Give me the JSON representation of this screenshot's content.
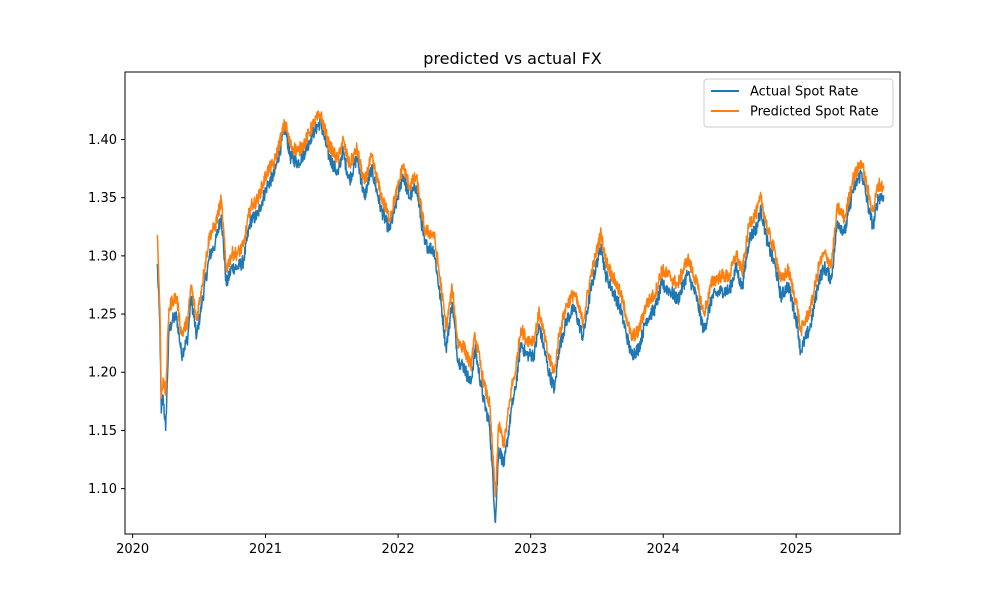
{
  "chart_data": {
    "type": "line",
    "title": "predicted vs actual FX",
    "xlabel": "",
    "ylabel": "",
    "x_ticks": [
      "2020",
      "2021",
      "2022",
      "2023",
      "2024",
      "2025"
    ],
    "y_ticks": [
      "1.10",
      "1.15",
      "1.20",
      "1.25",
      "1.30",
      "1.35",
      "1.40"
    ],
    "xlim": [
      "2019-12-11",
      "2025-10-14"
    ],
    "ylim": [
      1.061,
      1.458
    ],
    "grid": false,
    "legend_position": "top-right",
    "series": [
      {
        "name": "Actual Spot Rate",
        "color": "#1f77b4",
        "points": [
          [
            "2020-03-09",
            1.293
          ],
          [
            "2020-03-16",
            1.24
          ],
          [
            "2020-03-20",
            1.165
          ],
          [
            "2020-03-25",
            1.18
          ],
          [
            "2020-04-01",
            1.15
          ],
          [
            "2020-04-10",
            1.235
          ],
          [
            "2020-04-20",
            1.245
          ],
          [
            "2020-05-01",
            1.248
          ],
          [
            "2020-05-15",
            1.215
          ],
          [
            "2020-06-01",
            1.23
          ],
          [
            "2020-06-10",
            1.265
          ],
          [
            "2020-06-25",
            1.23
          ],
          [
            "2020-07-10",
            1.26
          ],
          [
            "2020-07-31",
            1.3
          ],
          [
            "2020-08-15",
            1.31
          ],
          [
            "2020-09-01",
            1.335
          ],
          [
            "2020-09-15",
            1.275
          ],
          [
            "2020-09-30",
            1.29
          ],
          [
            "2020-10-15",
            1.29
          ],
          [
            "2020-11-01",
            1.295
          ],
          [
            "2020-11-20",
            1.33
          ],
          [
            "2020-12-10",
            1.335
          ],
          [
            "2021-01-05",
            1.36
          ],
          [
            "2021-01-25",
            1.37
          ],
          [
            "2021-02-24",
            1.41
          ],
          [
            "2021-03-10",
            1.385
          ],
          [
            "2021-04-01",
            1.38
          ],
          [
            "2021-04-20",
            1.39
          ],
          [
            "2021-05-10",
            1.405
          ],
          [
            "2021-06-01",
            1.415
          ],
          [
            "2021-06-25",
            1.385
          ],
          [
            "2021-07-20",
            1.37
          ],
          [
            "2021-08-01",
            1.39
          ],
          [
            "2021-08-20",
            1.365
          ],
          [
            "2021-09-10",
            1.385
          ],
          [
            "2021-09-30",
            1.35
          ],
          [
            "2021-10-20",
            1.375
          ],
          [
            "2021-11-15",
            1.34
          ],
          [
            "2021-12-08",
            1.322
          ],
          [
            "2021-12-31",
            1.35
          ],
          [
            "2022-01-14",
            1.37
          ],
          [
            "2022-02-01",
            1.35
          ],
          [
            "2022-02-20",
            1.36
          ],
          [
            "2022-03-15",
            1.31
          ],
          [
            "2022-04-10",
            1.305
          ],
          [
            "2022-05-01",
            1.255
          ],
          [
            "2022-05-13",
            1.22
          ],
          [
            "2022-05-30",
            1.26
          ],
          [
            "2022-06-15",
            1.21
          ],
          [
            "2022-07-01",
            1.205
          ],
          [
            "2022-07-20",
            1.19
          ],
          [
            "2022-08-01",
            1.22
          ],
          [
            "2022-08-25",
            1.175
          ],
          [
            "2022-09-10",
            1.155
          ],
          [
            "2022-09-26",
            1.071
          ],
          [
            "2022-10-05",
            1.135
          ],
          [
            "2022-10-20",
            1.12
          ],
          [
            "2022-11-10",
            1.17
          ],
          [
            "2022-11-20",
            1.185
          ],
          [
            "2022-12-05",
            1.225
          ],
          [
            "2022-12-20",
            1.215
          ],
          [
            "2023-01-10",
            1.215
          ],
          [
            "2023-01-25",
            1.24
          ],
          [
            "2023-02-20",
            1.2
          ],
          [
            "2023-03-08",
            1.185
          ],
          [
            "2023-03-20",
            1.22
          ],
          [
            "2023-04-10",
            1.245
          ],
          [
            "2023-05-01",
            1.255
          ],
          [
            "2023-05-25",
            1.23
          ],
          [
            "2023-06-15",
            1.27
          ],
          [
            "2023-07-14",
            1.31
          ],
          [
            "2023-07-25",
            1.285
          ],
          [
            "2023-08-15",
            1.27
          ],
          [
            "2023-09-05",
            1.255
          ],
          [
            "2023-09-20",
            1.235
          ],
          [
            "2023-10-05",
            1.215
          ],
          [
            "2023-10-25",
            1.22
          ],
          [
            "2023-11-15",
            1.245
          ],
          [
            "2023-12-10",
            1.255
          ],
          [
            "2023-12-28",
            1.275
          ],
          [
            "2024-01-20",
            1.27
          ],
          [
            "2024-02-10",
            1.262
          ],
          [
            "2024-03-08",
            1.285
          ],
          [
            "2024-04-01",
            1.265
          ],
          [
            "2024-04-22",
            1.235
          ],
          [
            "2024-05-15",
            1.265
          ],
          [
            "2024-06-10",
            1.27
          ],
          [
            "2024-07-01",
            1.27
          ],
          [
            "2024-07-20",
            1.29
          ],
          [
            "2024-08-05",
            1.272
          ],
          [
            "2024-08-25",
            1.315
          ],
          [
            "2024-09-15",
            1.325
          ],
          [
            "2024-09-26",
            1.34
          ],
          [
            "2024-10-15",
            1.31
          ],
          [
            "2024-11-05",
            1.29
          ],
          [
            "2024-11-20",
            1.265
          ],
          [
            "2024-12-10",
            1.275
          ],
          [
            "2025-01-05",
            1.24
          ],
          [
            "2025-01-13",
            1.218
          ],
          [
            "2025-02-10",
            1.24
          ],
          [
            "2025-03-05",
            1.28
          ],
          [
            "2025-03-20",
            1.29
          ],
          [
            "2025-04-08",
            1.28
          ],
          [
            "2025-04-25",
            1.33
          ],
          [
            "2025-05-15",
            1.32
          ],
          [
            "2025-06-05",
            1.355
          ],
          [
            "2025-06-30",
            1.372
          ],
          [
            "2025-07-20",
            1.34
          ],
          [
            "2025-08-01",
            1.325
          ],
          [
            "2025-08-15",
            1.35
          ],
          [
            "2025-08-30",
            1.352
          ]
        ]
      },
      {
        "name": "Predicted Spot Rate",
        "color": "#ff7f0e",
        "points": [
          [
            "2020-03-09",
            1.318
          ],
          [
            "2020-03-16",
            1.255
          ],
          [
            "2020-03-20",
            1.178
          ],
          [
            "2020-03-25",
            1.195
          ],
          [
            "2020-04-01",
            1.18
          ],
          [
            "2020-04-10",
            1.255
          ],
          [
            "2020-04-20",
            1.262
          ],
          [
            "2020-05-01",
            1.265
          ],
          [
            "2020-05-15",
            1.232
          ],
          [
            "2020-06-01",
            1.245
          ],
          [
            "2020-06-10",
            1.275
          ],
          [
            "2020-06-25",
            1.245
          ],
          [
            "2020-07-10",
            1.275
          ],
          [
            "2020-07-31",
            1.318
          ],
          [
            "2020-08-15",
            1.325
          ],
          [
            "2020-09-01",
            1.348
          ],
          [
            "2020-09-15",
            1.288
          ],
          [
            "2020-09-30",
            1.302
          ],
          [
            "2020-10-15",
            1.302
          ],
          [
            "2020-11-01",
            1.308
          ],
          [
            "2020-11-20",
            1.342
          ],
          [
            "2020-12-10",
            1.348
          ],
          [
            "2021-01-05",
            1.372
          ],
          [
            "2021-01-25",
            1.38
          ],
          [
            "2021-02-24",
            1.415
          ],
          [
            "2021-03-10",
            1.395
          ],
          [
            "2021-04-01",
            1.39
          ],
          [
            "2021-04-20",
            1.398
          ],
          [
            "2021-05-10",
            1.412
          ],
          [
            "2021-06-01",
            1.422
          ],
          [
            "2021-06-25",
            1.395
          ],
          [
            "2021-07-20",
            1.382
          ],
          [
            "2021-08-01",
            1.4
          ],
          [
            "2021-08-20",
            1.378
          ],
          [
            "2021-09-10",
            1.392
          ],
          [
            "2021-09-30",
            1.362
          ],
          [
            "2021-10-20",
            1.385
          ],
          [
            "2021-11-15",
            1.352
          ],
          [
            "2021-12-08",
            1.332
          ],
          [
            "2021-12-31",
            1.358
          ],
          [
            "2022-01-14",
            1.378
          ],
          [
            "2022-02-01",
            1.36
          ],
          [
            "2022-02-20",
            1.368
          ],
          [
            "2022-03-15",
            1.322
          ],
          [
            "2022-04-10",
            1.318
          ],
          [
            "2022-05-01",
            1.27
          ],
          [
            "2022-05-13",
            1.238
          ],
          [
            "2022-05-30",
            1.272
          ],
          [
            "2022-06-15",
            1.225
          ],
          [
            "2022-07-01",
            1.222
          ],
          [
            "2022-07-20",
            1.205
          ],
          [
            "2022-08-01",
            1.232
          ],
          [
            "2022-08-25",
            1.19
          ],
          [
            "2022-09-10",
            1.172
          ],
          [
            "2022-09-26",
            1.093
          ],
          [
            "2022-10-05",
            1.155
          ],
          [
            "2022-10-20",
            1.138
          ],
          [
            "2022-11-10",
            1.188
          ],
          [
            "2022-11-20",
            1.2
          ],
          [
            "2022-12-05",
            1.238
          ],
          [
            "2022-12-20",
            1.228
          ],
          [
            "2023-01-10",
            1.228
          ],
          [
            "2023-01-25",
            1.252
          ],
          [
            "2023-02-20",
            1.212
          ],
          [
            "2023-03-08",
            1.2
          ],
          [
            "2023-03-20",
            1.232
          ],
          [
            "2023-04-10",
            1.258
          ],
          [
            "2023-05-01",
            1.268
          ],
          [
            "2023-05-25",
            1.243
          ],
          [
            "2023-06-15",
            1.282
          ],
          [
            "2023-07-14",
            1.32
          ],
          [
            "2023-07-25",
            1.298
          ],
          [
            "2023-08-15",
            1.282
          ],
          [
            "2023-09-05",
            1.268
          ],
          [
            "2023-09-20",
            1.25
          ],
          [
            "2023-10-05",
            1.23
          ],
          [
            "2023-10-25",
            1.235
          ],
          [
            "2023-11-15",
            1.258
          ],
          [
            "2023-12-10",
            1.268
          ],
          [
            "2023-12-28",
            1.288
          ],
          [
            "2024-01-20",
            1.282
          ],
          [
            "2024-02-10",
            1.275
          ],
          [
            "2024-03-08",
            1.298
          ],
          [
            "2024-04-01",
            1.278
          ],
          [
            "2024-04-22",
            1.25
          ],
          [
            "2024-05-15",
            1.278
          ],
          [
            "2024-06-10",
            1.283
          ],
          [
            "2024-07-01",
            1.282
          ],
          [
            "2024-07-20",
            1.302
          ],
          [
            "2024-08-05",
            1.285
          ],
          [
            "2024-08-25",
            1.328
          ],
          [
            "2024-09-15",
            1.338
          ],
          [
            "2024-09-26",
            1.35
          ],
          [
            "2024-10-15",
            1.322
          ],
          [
            "2024-11-05",
            1.302
          ],
          [
            "2024-11-20",
            1.278
          ],
          [
            "2024-12-10",
            1.288
          ],
          [
            "2025-01-05",
            1.255
          ],
          [
            "2025-01-13",
            1.235
          ],
          [
            "2025-02-10",
            1.255
          ],
          [
            "2025-03-05",
            1.292
          ],
          [
            "2025-03-20",
            1.302
          ],
          [
            "2025-04-08",
            1.292
          ],
          [
            "2025-04-25",
            1.342
          ],
          [
            "2025-05-15",
            1.332
          ],
          [
            "2025-06-05",
            1.365
          ],
          [
            "2025-06-30",
            1.381
          ],
          [
            "2025-07-20",
            1.352
          ],
          [
            "2025-08-01",
            1.338
          ],
          [
            "2025-08-15",
            1.362
          ],
          [
            "2025-08-30",
            1.358
          ]
        ]
      }
    ]
  }
}
